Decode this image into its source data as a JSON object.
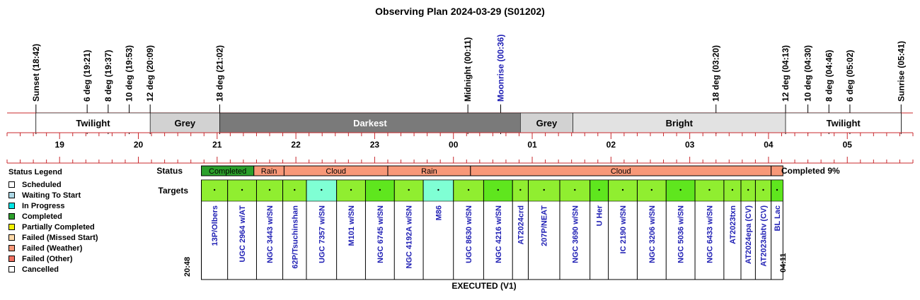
{
  "title": "Observing Plan 2024-03-29 (S01202)",
  "time_range": {
    "start": "18:20",
    "end": "05:50"
  },
  "events": [
    {
      "label": "Sunset (18:42)",
      "time": "18:42",
      "color": "#000000"
    },
    {
      "label": "6 deg (19:21)",
      "time": "19:21",
      "color": "#000000"
    },
    {
      "label": "8 deg (19:37)",
      "time": "19:37",
      "color": "#000000"
    },
    {
      "label": "10 deg (19:53)",
      "time": "19:53",
      "color": "#000000"
    },
    {
      "label": "12 deg (20:09)",
      "time": "20:09",
      "color": "#000000"
    },
    {
      "label": "18 deg (21:02)",
      "time": "21:02",
      "color": "#000000"
    },
    {
      "label": "Midnight (00:11)",
      "time": "00:11",
      "color": "#000000"
    },
    {
      "label": "Moonrise (00:36)",
      "time": "00:36",
      "color": "#1f1fb4"
    },
    {
      "label": "18 deg (03:20)",
      "time": "03:20",
      "color": "#000000"
    },
    {
      "label": "12 deg (04:13)",
      "time": "04:13",
      "color": "#000000"
    },
    {
      "label": "10 deg (04:30)",
      "time": "04:30",
      "color": "#000000"
    },
    {
      "label": "8 deg (04:46)",
      "time": "04:46",
      "color": "#000000"
    },
    {
      "label": "6 deg (05:02)",
      "time": "05:02",
      "color": "#000000"
    },
    {
      "label": "Sunrise (05:41)",
      "time": "05:41",
      "color": "#000000"
    }
  ],
  "sky_periods": [
    {
      "label": "Twilight",
      "start": "18:42",
      "end": "20:09",
      "color": "#ffffff",
      "text_color": "#000000"
    },
    {
      "label": "Grey",
      "start": "20:09",
      "end": "21:02",
      "color": "#d2d2d2",
      "text_color": "#000000"
    },
    {
      "label": "Darkest",
      "start": "21:02",
      "end": "00:51",
      "color": "#7a7a7a",
      "text_color": "#ffffff"
    },
    {
      "label": "Grey",
      "start": "00:51",
      "end": "01:31",
      "color": "#d2d2d2",
      "text_color": "#000000"
    },
    {
      "label": "Bright",
      "start": "01:31",
      "end": "04:13",
      "color": "#e2e2e2",
      "text_color": "#000000"
    },
    {
      "label": "Twilight",
      "start": "04:13",
      "end": "05:41",
      "color": "#ffffff",
      "text_color": "#000000"
    }
  ],
  "hour_labels": [
    "19",
    "20",
    "21",
    "22",
    "23",
    "00",
    "01",
    "02",
    "03",
    "04",
    "05"
  ],
  "status_label": "Status",
  "targets_label": "Targets",
  "completion_text": "Completed 9%",
  "start_time": "20:48",
  "end_time": "04:11",
  "footer": "EXECUTED (V1)",
  "status_segments": [
    {
      "label": "Completed",
      "start": "20:48",
      "end": "21:28",
      "color": "#2ca02c"
    },
    {
      "label": "Rain",
      "start": "21:28",
      "end": "21:51",
      "color": "#f89878"
    },
    {
      "label": "Cloud",
      "start": "21:51",
      "end": "23:10",
      "color": "#f89878"
    },
    {
      "label": "Rain",
      "start": "23:10",
      "end": "00:13",
      "color": "#f89878"
    },
    {
      "label": "Cloud",
      "start": "00:13",
      "end": "04:02",
      "color": "#f89878"
    },
    {
      "label": "",
      "start": "04:02",
      "end": "04:11",
      "color": "#f89878"
    }
  ],
  "targets": [
    {
      "name": "13P/Olbers",
      "start": "20:48",
      "end": "21:08",
      "color": "#90ee30"
    },
    {
      "name": "UGC 2964 w/AT",
      "start": "21:08",
      "end": "21:30",
      "color": "#90ee30"
    },
    {
      "name": "NGC 3443 w/SN",
      "start": "21:30",
      "end": "21:50",
      "color": "#90ee30"
    },
    {
      "name": "62P/Tsuchinshan",
      "start": "21:50",
      "end": "22:08",
      "color": "#90ee30"
    },
    {
      "name": "UGC 7357 w/SN",
      "start": "22:08",
      "end": "22:31",
      "color": "#7fffd4"
    },
    {
      "name": "M101 w/SN",
      "start": "22:31",
      "end": "22:53",
      "color": "#90ee30"
    },
    {
      "name": "NGC 6745 w/SN",
      "start": "22:53",
      "end": "23:15",
      "color": "#5fe61e"
    },
    {
      "name": "NGC 4192A w/SN",
      "start": "23:15",
      "end": "23:37",
      "color": "#90ee30"
    },
    {
      "name": "M86",
      "start": "23:37",
      "end": "00:00",
      "color": "#7fffd4"
    },
    {
      "name": "UGC 8630 w/SN",
      "start": "00:00",
      "end": "00:23",
      "color": "#90ee30"
    },
    {
      "name": "NGC 4216 w/SN",
      "start": "00:23",
      "end": "00:45",
      "color": "#5fe61e"
    },
    {
      "name": "AT2024crd",
      "start": "00:45",
      "end": "00:57",
      "color": "#90ee30"
    },
    {
      "name": "207P/NEAT",
      "start": "00:57",
      "end": "01:21",
      "color": "#90ee30"
    },
    {
      "name": "NGC 3690 w/SN",
      "start": "01:21",
      "end": "01:44",
      "color": "#90ee30"
    },
    {
      "name": "U Her",
      "start": "01:44",
      "end": "01:58",
      "color": "#5fe61e"
    },
    {
      "name": "IC 2190 w/SN",
      "start": "01:58",
      "end": "02:20",
      "color": "#90ee30"
    },
    {
      "name": "NGC 3206 w/SN",
      "start": "02:20",
      "end": "02:42",
      "color": "#90ee30"
    },
    {
      "name": "NGC 5036 w/SN",
      "start": "02:42",
      "end": "03:04",
      "color": "#5fe61e"
    },
    {
      "name": "NGC 6433 w/SN",
      "start": "03:04",
      "end": "03:26",
      "color": "#90ee30"
    },
    {
      "name": "AT2023txn",
      "start": "03:26",
      "end": "03:39",
      "color": "#90ee30"
    },
    {
      "name": "AT2024epa (CV)",
      "start": "03:39",
      "end": "03:50",
      "color": "#90ee30"
    },
    {
      "name": "AT2023abtv (CV)",
      "start": "03:50",
      "end": "04:02",
      "color": "#90ee30"
    },
    {
      "name": "BL Lac",
      "start": "04:02",
      "end": "04:11",
      "color": "#5fe61e"
    }
  ],
  "legend": {
    "title": "Status Legend",
    "items": [
      {
        "label": "Scheduled",
        "color": "#ffffff"
      },
      {
        "label": "Waiting To Start",
        "color": "#add8e6"
      },
      {
        "label": "In Progress",
        "color": "#00e5e5"
      },
      {
        "label": "Completed",
        "color": "#2ca02c"
      },
      {
        "label": "Partially Completed",
        "color": "#f2f200"
      },
      {
        "label": "Failed (Missed Start)",
        "color": "#ffd9a8"
      },
      {
        "label": "Failed (Weather)",
        "color": "#f89878"
      },
      {
        "label": "Failed (Other)",
        "color": "#f07060"
      },
      {
        "label": "Cancelled",
        "color": "#ffffff"
      }
    ]
  }
}
